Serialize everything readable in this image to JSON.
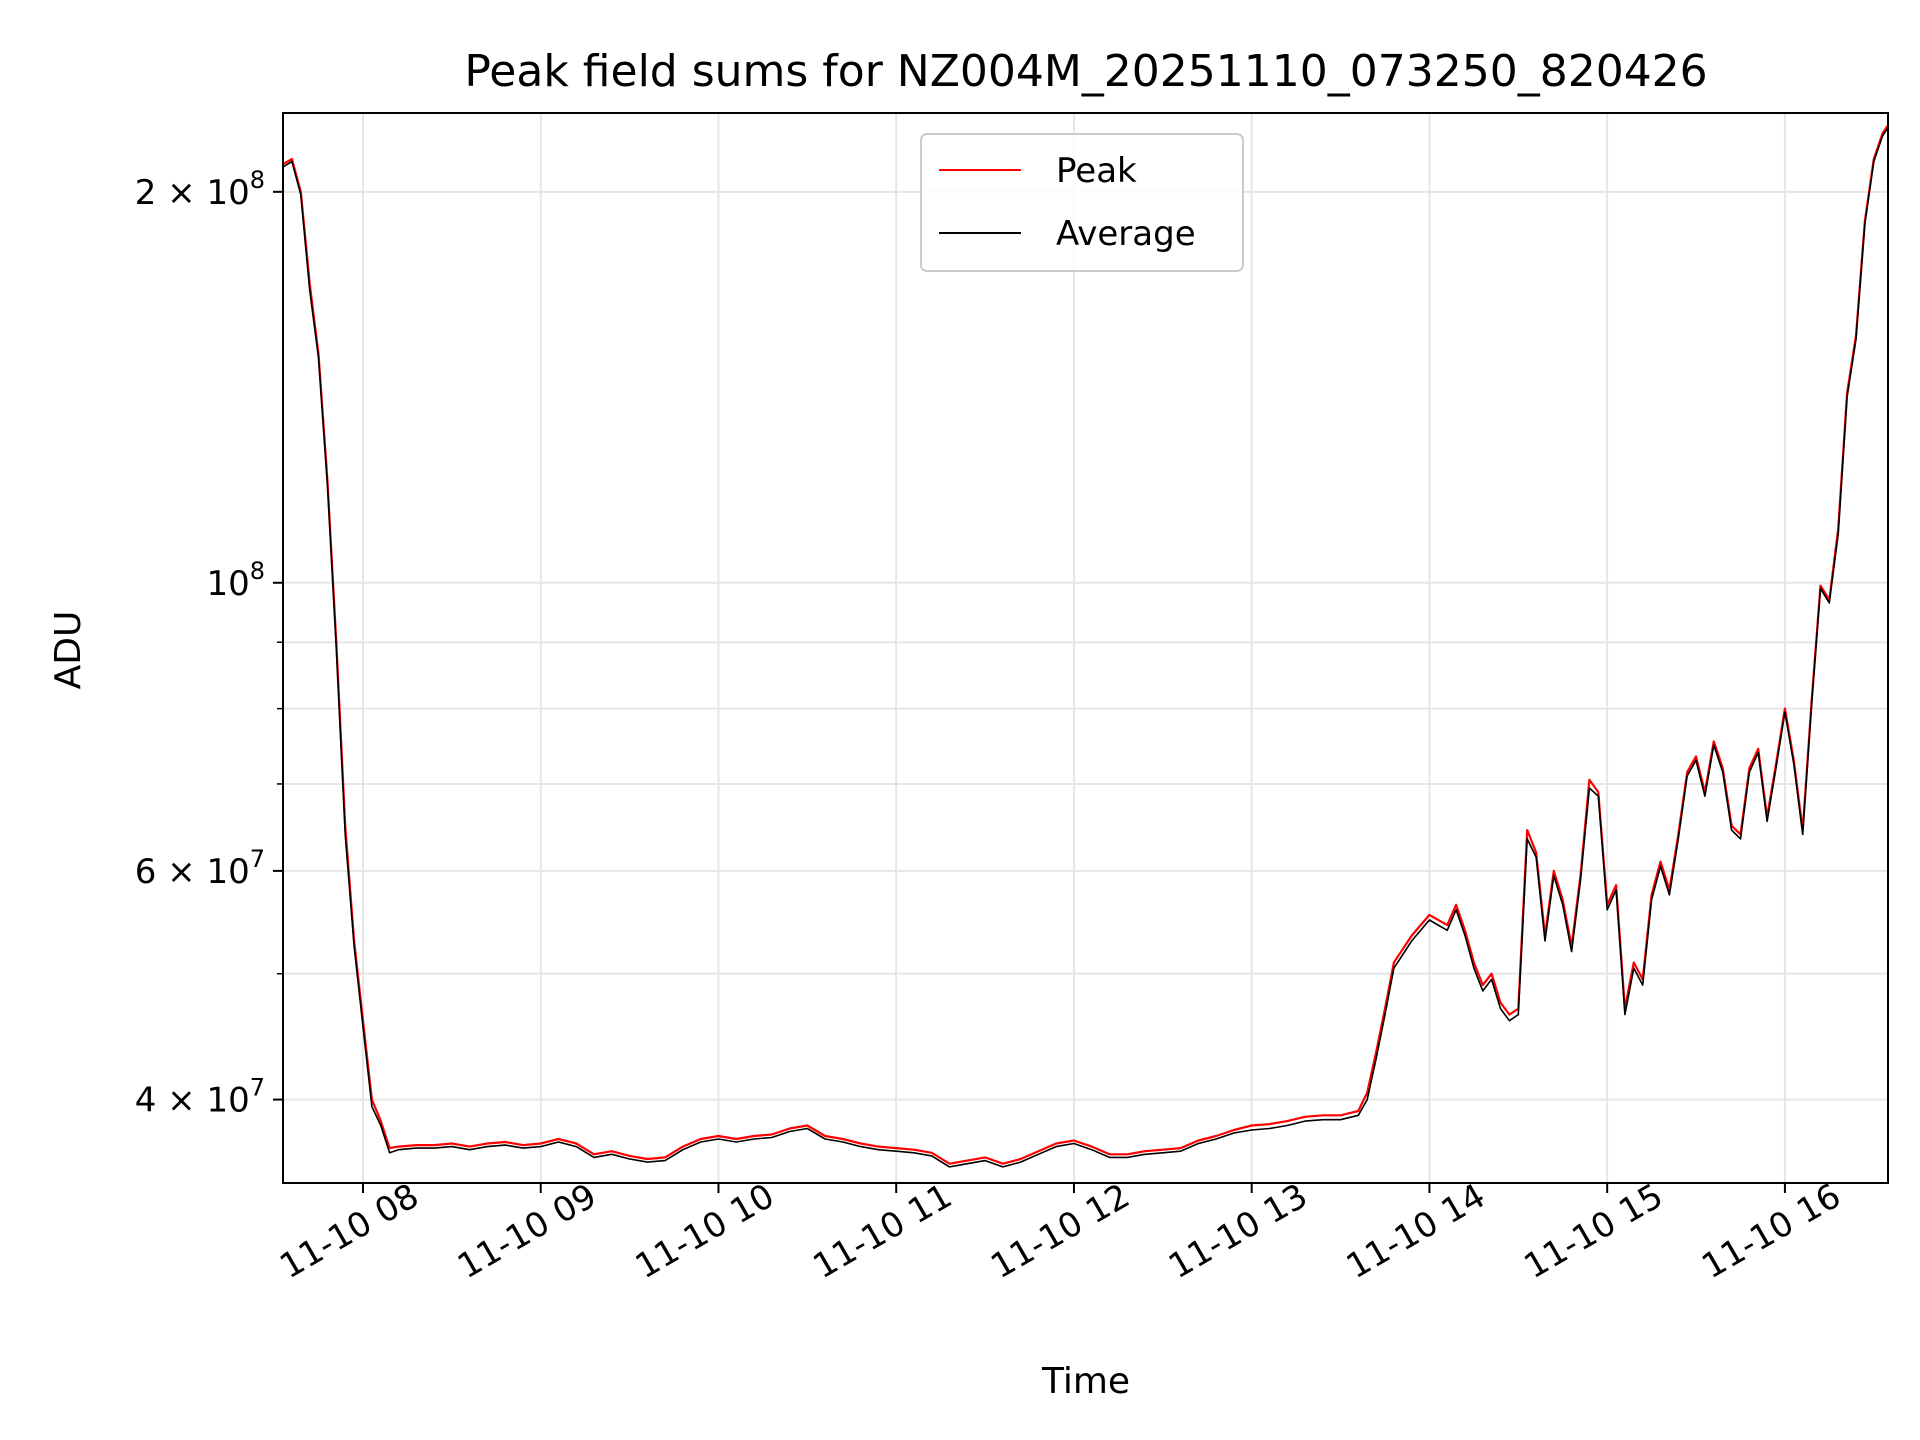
{
  "chart_data": {
    "type": "line",
    "title": "Peak field sums for NZ004M_20251110_073250_820426",
    "xlabel": "Time",
    "ylabel": "ADU",
    "x_unit": "hour of 2025-11-10",
    "x_ticks": [
      {
        "x": 8,
        "label": "11-10 08"
      },
      {
        "x": 9,
        "label": "11-10 09"
      },
      {
        "x": 10,
        "label": "11-10 10"
      },
      {
        "x": 11,
        "label": "11-10 11"
      },
      {
        "x": 12,
        "label": "11-10 12"
      },
      {
        "x": 13,
        "label": "11-10 13"
      },
      {
        "x": 14,
        "label": "11-10 14"
      },
      {
        "x": 15,
        "label": "11-10 15"
      },
      {
        "x": 16,
        "label": "11-10 16"
      }
    ],
    "xlim": [
      7.55,
      16.58
    ],
    "y_scale": "log",
    "ylim": [
      34500000,
      230000000
    ],
    "y_ticks_labeled": [
      {
        "y": 40000000,
        "label": "4 × 10",
        "exp": "7"
      },
      {
        "y": 60000000,
        "label": "6 × 10",
        "exp": "7"
      },
      {
        "y": 100000000,
        "label": "10",
        "exp": "8"
      },
      {
        "y": 200000000,
        "label": "2 × 10",
        "exp": "8"
      }
    ],
    "y_minor_grid": [
      50000000,
      70000000,
      80000000,
      90000000
    ],
    "grid": true,
    "legend_position": "top-center",
    "series": [
      {
        "name": "Peak",
        "color": "#ff0000",
        "x": [
          7.55,
          7.6,
          7.65,
          7.7,
          7.75,
          7.8,
          7.85,
          7.9,
          7.95,
          8.0,
          8.05,
          8.1,
          8.15,
          8.2,
          8.3,
          8.4,
          8.5,
          8.6,
          8.7,
          8.8,
          8.9,
          9.0,
          9.1,
          9.2,
          9.3,
          9.4,
          9.5,
          9.6,
          9.7,
          9.8,
          9.9,
          10.0,
          10.1,
          10.2,
          10.3,
          10.4,
          10.5,
          10.6,
          10.7,
          10.8,
          10.9,
          11.0,
          11.1,
          11.2,
          11.3,
          11.4,
          11.5,
          11.6,
          11.7,
          11.8,
          11.9,
          12.0,
          12.1,
          12.2,
          12.3,
          12.4,
          12.5,
          12.6,
          12.7,
          12.8,
          12.9,
          13.0,
          13.1,
          13.2,
          13.3,
          13.4,
          13.5,
          13.6,
          13.65,
          13.7,
          13.75,
          13.8,
          13.9,
          14.0,
          14.1,
          14.15,
          14.2,
          14.25,
          14.3,
          14.35,
          14.4,
          14.45,
          14.5,
          14.55,
          14.6,
          14.65,
          14.7,
          14.75,
          14.8,
          14.85,
          14.9,
          14.95,
          15.0,
          15.05,
          15.1,
          15.15,
          15.2,
          15.25,
          15.3,
          15.35,
          15.4,
          15.45,
          15.5,
          15.55,
          15.6,
          15.65,
          15.7,
          15.75,
          15.8,
          15.85,
          15.9,
          15.95,
          16.0,
          16.05,
          16.1,
          16.15,
          16.2,
          16.25,
          16.3,
          16.35,
          16.4,
          16.45,
          16.5,
          16.55,
          16.58
        ],
        "y": [
          210000000,
          212000000,
          200000000,
          170000000,
          150000000,
          120000000,
          90000000,
          65000000,
          53000000,
          46000000,
          40000000,
          38500000,
          36700000,
          36800000,
          36900000,
          36900000,
          37000000,
          36800000,
          37000000,
          37100000,
          36900000,
          37000000,
          37300000,
          37000000,
          36300000,
          36500000,
          36200000,
          36000000,
          36100000,
          36800000,
          37300000,
          37500000,
          37300000,
          37500000,
          37600000,
          38000000,
          38200000,
          37500000,
          37300000,
          37000000,
          36800000,
          36700000,
          36600000,
          36400000,
          35700000,
          35900000,
          36100000,
          35700000,
          36000000,
          36500000,
          37000000,
          37200000,
          36800000,
          36300000,
          36300000,
          36500000,
          36600000,
          36700000,
          37200000,
          37500000,
          37900000,
          38200000,
          38300000,
          38500000,
          38800000,
          38900000,
          38900000,
          39200000,
          40500000,
          43500000,
          47000000,
          51000000,
          53500000,
          55500000,
          54500000,
          56500000,
          54000000,
          51000000,
          49000000,
          50000000,
          47500000,
          46500000,
          47000000,
          64500000,
          62000000,
          53500000,
          60000000,
          57000000,
          52500000,
          59500000,
          70500000,
          69000000,
          56500000,
          58500000,
          47000000,
          51000000,
          49500000,
          57500000,
          61000000,
          58000000,
          64000000,
          71500000,
          73500000,
          69000000,
          75500000,
          72000000,
          65000000,
          64000000,
          72000000,
          74500000,
          66000000,
          72500000,
          80000000,
          73000000,
          64500000,
          81000000,
          99500000,
          97000000,
          110000000,
          140000000,
          155000000,
          190000000,
          212000000,
          222000000,
          225000000
        ]
      },
      {
        "name": "Average",
        "color": "#000000",
        "x": [
          7.55,
          7.6,
          7.65,
          7.7,
          7.75,
          7.8,
          7.85,
          7.9,
          7.95,
          8.0,
          8.05,
          8.1,
          8.15,
          8.2,
          8.3,
          8.4,
          8.5,
          8.6,
          8.7,
          8.8,
          8.9,
          9.0,
          9.1,
          9.2,
          9.3,
          9.4,
          9.5,
          9.6,
          9.7,
          9.8,
          9.9,
          10.0,
          10.1,
          10.2,
          10.3,
          10.4,
          10.5,
          10.6,
          10.7,
          10.8,
          10.9,
          11.0,
          11.1,
          11.2,
          11.3,
          11.4,
          11.5,
          11.6,
          11.7,
          11.8,
          11.9,
          12.0,
          12.1,
          12.2,
          12.3,
          12.4,
          12.5,
          12.6,
          12.7,
          12.8,
          12.9,
          13.0,
          13.1,
          13.2,
          13.3,
          13.4,
          13.5,
          13.6,
          13.65,
          13.7,
          13.75,
          13.8,
          13.9,
          14.0,
          14.1,
          14.15,
          14.2,
          14.25,
          14.3,
          14.35,
          14.4,
          14.45,
          14.5,
          14.55,
          14.6,
          14.65,
          14.7,
          14.75,
          14.8,
          14.85,
          14.9,
          14.95,
          15.0,
          15.05,
          15.1,
          15.15,
          15.2,
          15.25,
          15.3,
          15.35,
          15.4,
          15.45,
          15.5,
          15.55,
          15.6,
          15.65,
          15.7,
          15.75,
          15.8,
          15.85,
          15.9,
          15.95,
          16.0,
          16.05,
          16.1,
          16.15,
          16.2,
          16.25,
          16.3,
          16.35,
          16.4,
          16.45,
          16.5,
          16.55,
          16.58
        ],
        "y": [
          209000000,
          211000000,
          199000000,
          168000000,
          149000000,
          119000000,
          89000000,
          64000000,
          52500000,
          45500000,
          39500000,
          38200000,
          36400000,
          36600000,
          36700000,
          36700000,
          36800000,
          36600000,
          36800000,
          36900000,
          36700000,
          36800000,
          37100000,
          36800000,
          36100000,
          36300000,
          36000000,
          35800000,
          35900000,
          36600000,
          37100000,
          37300000,
          37100000,
          37300000,
          37400000,
          37800000,
          38000000,
          37300000,
          37100000,
          36800000,
          36600000,
          36500000,
          36400000,
          36200000,
          35500000,
          35700000,
          35900000,
          35500000,
          35800000,
          36300000,
          36800000,
          37000000,
          36600000,
          36100000,
          36100000,
          36300000,
          36400000,
          36500000,
          37000000,
          37300000,
          37700000,
          37900000,
          38000000,
          38200000,
          38500000,
          38600000,
          38600000,
          38900000,
          40000000,
          43000000,
          46500000,
          50500000,
          53000000,
          55000000,
          54000000,
          56000000,
          53500000,
          50500000,
          48500000,
          49500000,
          47000000,
          46000000,
          46500000,
          63500000,
          61500000,
          53000000,
          59500000,
          56500000,
          52000000,
          59000000,
          69500000,
          68500000,
          56000000,
          58000000,
          46500000,
          50500000,
          49000000,
          57000000,
          60500000,
          57500000,
          63500000,
          71000000,
          73000000,
          68500000,
          75000000,
          71500000,
          64500000,
          63500000,
          71500000,
          74000000,
          65500000,
          72000000,
          79500000,
          72500000,
          64000000,
          80500000,
          99000000,
          96500000,
          109000000,
          139000000,
          154000000,
          189000000,
          211000000,
          221000000,
          224000000
        ]
      }
    ]
  }
}
